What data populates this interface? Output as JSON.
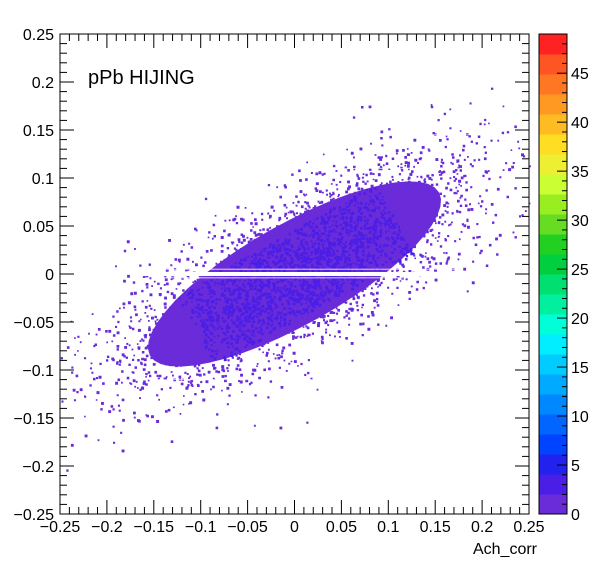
{
  "chart_data": {
    "type": "heatmap",
    "title": "",
    "annotation": "pPb HIJING",
    "xlabel": "Ach_corr",
    "ylabel": "",
    "xlim": [
      -0.25,
      0.25
    ],
    "ylim": [
      -0.25,
      0.25
    ],
    "x_ticks": [
      -0.25,
      -0.2,
      -0.15,
      -0.1,
      -0.05,
      0,
      0.05,
      0.1,
      0.15,
      0.2,
      0.25
    ],
    "x_tick_labels": [
      "−0.25",
      "−0.2",
      "−0.15",
      "−0.1",
      "−0.05",
      "0",
      "0.05",
      "0.1",
      "0.15",
      "0.2",
      "0.25"
    ],
    "y_ticks": [
      -0.25,
      -0.2,
      -0.15,
      -0.1,
      -0.05,
      0,
      0.05,
      0.1,
      0.15,
      0.2,
      0.25
    ],
    "y_tick_labels": [
      "−0.25",
      "−0.2",
      "−0.15",
      "−0.1",
      "−0.05",
      "0",
      "0.05",
      "0.1",
      "0.15",
      "0.2",
      "0.25"
    ],
    "grid": false,
    "distribution": {
      "shape": "correlated elliptical band",
      "slope": 0.55,
      "sigma_along": 0.11,
      "sigma_across": 0.035,
      "gap_at_y": 0
    },
    "colorbar": {
      "min": 0,
      "max": 49,
      "ticks": [
        0,
        5,
        10,
        15,
        20,
        25,
        30,
        35,
        40,
        45
      ],
      "colors": [
        "#6a2bd9",
        "#4a1ee6",
        "#2222ee",
        "#0044ff",
        "#0066ff",
        "#0088ff",
        "#00aaff",
        "#00ccff",
        "#00eeff",
        "#00ffd8",
        "#00f0a0",
        "#00e070",
        "#00d040",
        "#22d022",
        "#66dd22",
        "#99ee22",
        "#ccff33",
        "#eeee33",
        "#ffdd22",
        "#ffbb22",
        "#ff9922",
        "#ff7722",
        "#ff5522",
        "#ff2222"
      ]
    }
  }
}
